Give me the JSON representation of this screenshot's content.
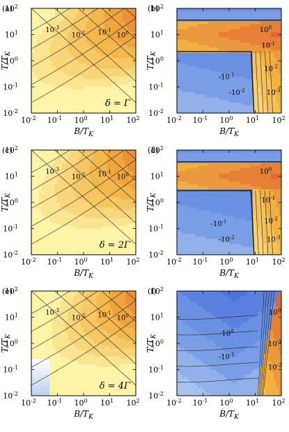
{
  "figure": {
    "axis_labels": {
      "x": "B/T",
      "x_sub": "K",
      "y": "T/T",
      "y_sub": "K"
    },
    "ticks": [
      "10",
      "10",
      "10",
      "10",
      "10"
    ],
    "tick_exponents": [
      "-2",
      "-1",
      "0",
      "1",
      "2"
    ]
  },
  "colors": {
    "warm_light": "#fef4a8",
    "warm_mid": "#f2b040",
    "warm_dark": "#d9502e",
    "cool_light": "#d8e4f6",
    "cool_mid": "#7a9ee6",
    "cool_dark": "#3a64d8",
    "contour_line": "#222222"
  },
  "chart_data": [
    {
      "panel": "(a)",
      "type": "heatmap",
      "xlabel": "B/T_K",
      "ylabel": "T/T_K",
      "xscale": "log",
      "yscale": "log",
      "xlim": [
        0.01,
        100
      ],
      "ylim": [
        0.01,
        100
      ],
      "annotation": "δ = Γ",
      "contour_labels": [
        "10^-3",
        "10^-2",
        "10^-1",
        "10^0"
      ],
      "sign": "positive"
    },
    {
      "panel": "(b)",
      "type": "heatmap",
      "xlabel": "B/T_K",
      "ylabel": "T/T_K",
      "xscale": "log",
      "yscale": "log",
      "xlim": [
        0.01,
        100
      ],
      "ylim": [
        0.01,
        100
      ],
      "contour_labels": [
        "10^0",
        "10^-1",
        "-10^-1",
        "-10^-2",
        "10^-2",
        "10^-3"
      ],
      "sign": "mixed"
    },
    {
      "panel": "(c)",
      "type": "heatmap",
      "xlabel": "B/T_K",
      "ylabel": "T/T_K",
      "xscale": "log",
      "yscale": "log",
      "xlim": [
        0.01,
        100
      ],
      "ylim": [
        0.01,
        100
      ],
      "annotation": "δ = 2Γ",
      "contour_labels": [
        "10^-3",
        "10^-2",
        "10^-1",
        "10^0"
      ],
      "sign": "positive"
    },
    {
      "panel": "(d)",
      "type": "heatmap",
      "xlabel": "B/T_K",
      "ylabel": "T/T_K",
      "xscale": "log",
      "yscale": "log",
      "xlim": [
        0.01,
        100
      ],
      "ylim": [
        0.01,
        100
      ],
      "contour_labels": [
        "10^0",
        "-10^-1",
        "10^-1",
        "-10^-2",
        "10^-2",
        "10^-3"
      ],
      "sign": "mixed"
    },
    {
      "panel": "(e)",
      "type": "heatmap",
      "xlabel": "B/T_K",
      "ylabel": "T/T_K",
      "xscale": "log",
      "yscale": "log",
      "xlim": [
        0.01,
        100
      ],
      "ylim": [
        0.01,
        100
      ],
      "annotation": "δ = 4Γ",
      "contour_labels": [
        "10^-3",
        "10^-2",
        "10^-1",
        "10^0"
      ],
      "sign": "positive"
    },
    {
      "panel": "(f)",
      "type": "heatmap",
      "xlabel": "B/T_K",
      "ylabel": "T/T_K",
      "xscale": "log",
      "yscale": "log",
      "xlim": [
        0.01,
        100
      ],
      "ylim": [
        0.01,
        100
      ],
      "contour_labels": [
        "-10^0",
        "10^0",
        "10^-1",
        "-10^-1",
        "10^-2"
      ],
      "sign": "mixed"
    }
  ]
}
